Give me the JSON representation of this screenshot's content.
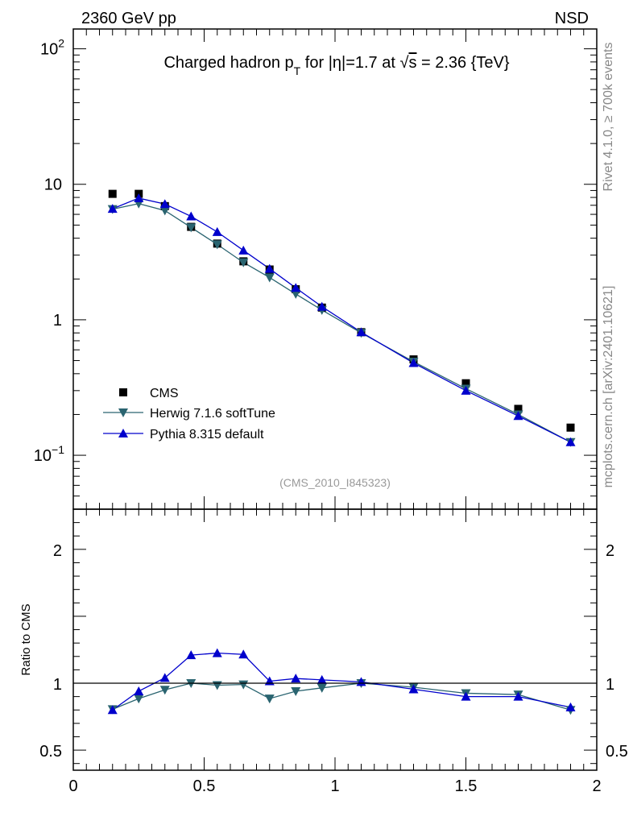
{
  "header": {
    "left_label": "2360 GeV pp",
    "right_label": "NSD"
  },
  "side_labels": {
    "rivet": "Rivet 4.1.0, ≥ 700k events",
    "mcplots": "mcplots.cern.ch [arXiv:2401.10621]"
  },
  "chart_data": [
    {
      "type": "line",
      "title": "Charged hadron p_T for |η|=1.7 at √s = 2.36 {TeV}",
      "title_parts": {
        "prefix": "Charged hadron p",
        "sub": "T",
        "middle": " for |η|=1.7 at √",
        "overline": "s",
        "suffix": " = 2.36 {TeV}"
      },
      "analysis_id": "(CMS_2010_I845323)",
      "yscale": "log",
      "xlim": [
        0,
        2
      ],
      "ylim": [
        0.04,
        140
      ],
      "ytick_labels": [
        {
          "value": 100,
          "base": "10",
          "exp": "2"
        },
        {
          "value": 10,
          "base": "10",
          "exp": ""
        },
        {
          "value": 1,
          "base": "1",
          "exp": ""
        },
        {
          "value": 0.1,
          "base": "10",
          "exp": "−1"
        }
      ],
      "legend_position": "bottom-left",
      "series": [
        {
          "name": "CMS",
          "color": "#000000",
          "marker": "square",
          "line": false,
          "x": [
            0.15,
            0.25,
            0.35,
            0.45,
            0.55,
            0.65,
            0.75,
            0.85,
            0.95,
            1.1,
            1.3,
            1.5,
            1.7,
            1.9
          ],
          "y": [
            8.5,
            8.5,
            6.9,
            4.85,
            3.65,
            2.7,
            2.35,
            1.68,
            1.23,
            0.81,
            0.51,
            0.34,
            0.22,
            0.16
          ]
        },
        {
          "name": "Herwig 7.1.6 softTune",
          "color": "#2a6470",
          "marker": "triangle-down",
          "line": true,
          "x": [
            0.15,
            0.25,
            0.35,
            0.45,
            0.55,
            0.65,
            0.75,
            0.85,
            0.95,
            1.1,
            1.3,
            1.5,
            1.7,
            1.9
          ],
          "y": [
            6.55,
            7.2,
            6.4,
            4.8,
            3.6,
            2.65,
            2.05,
            1.55,
            1.18,
            0.8,
            0.49,
            0.31,
            0.2,
            0.125
          ]
        },
        {
          "name": "Pythia 8.315 default",
          "color": "#0000cc",
          "marker": "triangle-up",
          "line": true,
          "x": [
            0.15,
            0.25,
            0.35,
            0.45,
            0.55,
            0.65,
            0.75,
            0.85,
            0.95,
            1.1,
            1.3,
            1.5,
            1.7,
            1.9
          ],
          "y": [
            6.6,
            7.9,
            7.15,
            5.8,
            4.45,
            3.25,
            2.38,
            1.72,
            1.25,
            0.81,
            0.48,
            0.3,
            0.195,
            0.125
          ]
        }
      ]
    },
    {
      "type": "line",
      "ylabel": "Ratio to CMS",
      "xlim": [
        0,
        2
      ],
      "ylim": [
        0.35,
        2.3
      ],
      "xtick_labels": [
        "0",
        "0.5",
        "1",
        "1.5",
        "2"
      ],
      "xtick_values": [
        0,
        0.5,
        1,
        1.5,
        2
      ],
      "ytick_labels": [
        "2",
        "1",
        "0.5"
      ],
      "ytick_values": [
        2,
        1,
        0.5
      ],
      "reference_line": 1,
      "series": [
        {
          "name": "Herwig 7.1.6 softTune",
          "color": "#2a6470",
          "marker": "triangle-down",
          "x": [
            0.15,
            0.25,
            0.35,
            0.45,
            0.55,
            0.65,
            0.75,
            0.85,
            0.95,
            1.1,
            1.3,
            1.5,
            1.7,
            1.9
          ],
          "y": [
            0.805,
            0.885,
            0.95,
            1.0,
            0.985,
            0.99,
            0.885,
            0.94,
            0.965,
            1.0,
            0.97,
            0.925,
            0.915,
            0.8
          ]
        },
        {
          "name": "Pythia 8.315 default",
          "color": "#0000cc",
          "marker": "triangle-up",
          "x": [
            0.15,
            0.25,
            0.35,
            0.45,
            0.55,
            0.65,
            0.75,
            0.85,
            0.95,
            1.1,
            1.3,
            1.5,
            1.7,
            1.9
          ],
          "y": [
            0.8,
            0.94,
            1.04,
            1.21,
            1.225,
            1.215,
            1.015,
            1.035,
            1.025,
            1.01,
            0.955,
            0.9,
            0.9,
            0.82
          ]
        }
      ]
    }
  ]
}
